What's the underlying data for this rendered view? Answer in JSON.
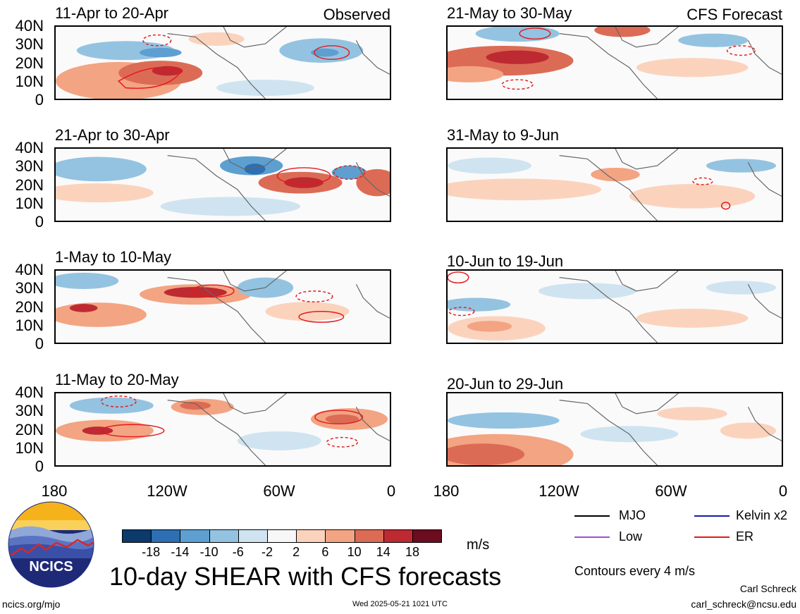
{
  "headers": {
    "observed": "Observed",
    "forecast": "CFS Forecast"
  },
  "panels": [
    {
      "title": "11-Apr to 20-Apr"
    },
    {
      "title": "21-Apr to 30-Apr"
    },
    {
      "title": "1-May to 10-May"
    },
    {
      "title": "11-May to 20-May"
    },
    {
      "title": "21-May to 30-May"
    },
    {
      "title": "31-May to 9-Jun"
    },
    {
      "title": "10-Jun to 19-Jun"
    },
    {
      "title": "20-Jun to 29-Jun"
    }
  ],
  "lat_labels": [
    "40N",
    "30N",
    "20N",
    "10N",
    "0"
  ],
  "lon_labels": [
    "180",
    "120W",
    "60W",
    "0"
  ],
  "colorbar": {
    "colors": [
      "#0b3a6b",
      "#2d6fb2",
      "#5d9fd0",
      "#94c3e1",
      "#cfe4f0",
      "#f7f7f7",
      "#fbd3bd",
      "#f3a482",
      "#dc6b55",
      "#bd2a32",
      "#6b0c1f"
    ],
    "labels": [
      "-18",
      "-14",
      "-10",
      "-6",
      "-2",
      "2",
      "6",
      "10",
      "14",
      "18"
    ],
    "units": "m/s"
  },
  "legend": [
    {
      "label": "MJO",
      "color": "#000000"
    },
    {
      "label": "Kelvin x2",
      "color": "#1a1aa6"
    },
    {
      "label": "Low",
      "color": "#9b4fd6"
    },
    {
      "label": "ER",
      "color": "#e41a1c"
    }
  ],
  "contour_note": "Contours every 4 m/s",
  "main_title": "10-day SHEAR with CFS forecasts",
  "logo_text": "NCICS",
  "footer": {
    "url": "ncics.org/mjo",
    "timestamp": "Wed 2025-05-21 1021 UTC",
    "author": "Carl Schreck",
    "email": "carl_schreck@ncsu.edu"
  }
}
